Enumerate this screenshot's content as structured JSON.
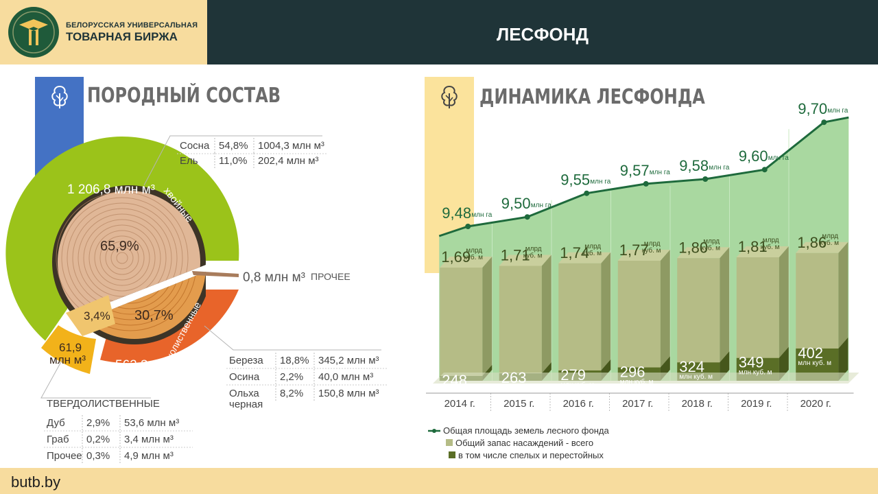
{
  "header": {
    "logo_line1": "БЕЛОРУССКАЯ УНИВЕРСАЛЬНАЯ",
    "logo_line2": "ТОВАРНАЯ БИРЖА",
    "title": "ЛЕСФОНД"
  },
  "footer": {
    "url": "butb.by"
  },
  "species": {
    "title": "ПОРОДНЫЙ СОСТАВ",
    "coniferous": {
      "label": "хвойные",
      "volume": "1 206,8 млн м³",
      "share": "65,9%",
      "rows": [
        {
          "name": "Сосна",
          "pct": "54,8%",
          "vol": "1004,3 млн м³"
        },
        {
          "name": "Ель",
          "pct": "11,0%",
          "vol": "202,4 млн м³"
        }
      ]
    },
    "softwood": {
      "label": "мягколиственные",
      "volume_line1": "562,3",
      "volume_line2": "млн м³",
      "share": "30,7%",
      "rows": [
        {
          "name": "Береза",
          "pct": "18,8%",
          "vol": "345,2 млн м³"
        },
        {
          "name": "Осина",
          "pct": "2,2%",
          "vol": "40,0 млн м³"
        },
        {
          "name": "Ольха черная",
          "pct": "8,2%",
          "vol": "150,8 млн м³"
        }
      ]
    },
    "hardwood": {
      "label": "ТВЕРДОЛИСТВЕННЫЕ",
      "volume_line1": "61,9",
      "volume_line2": "млн м³",
      "share": "3,4%",
      "rows": [
        {
          "name": "Дуб",
          "pct": "2,9%",
          "vol": "53,6 млн м³"
        },
        {
          "name": "Граб",
          "pct": "0,2%",
          "vol": "3,4 млн м³"
        },
        {
          "name": "Прочее",
          "pct": "0,3%",
          "vol": "4,9 млн м³"
        }
      ]
    },
    "other": {
      "value": "0,8 млн м³",
      "label": "ПРОЧЕЕ"
    }
  },
  "dynamics": {
    "title": "ДИНАМИКА ЛЕСФОНДА",
    "legend": {
      "line": "Общая площадь земель лесного фонда",
      "total": "Общий запас насаждений - всего",
      "mature": "в том числе спелых и перестойных"
    },
    "area_unit": "млн га",
    "total_unit_line1": "млрд",
    "total_unit_line2": "куб. м",
    "mature_unit": "млн куб. м",
    "colors": {
      "line": "#1e6a3c",
      "area_fill": "#a9d8a0",
      "bar_front": "#b5bc86",
      "bar_side": "#8e9a63",
      "mature": "#5a6e26"
    }
  },
  "chart_data": {
    "type": "bar",
    "categories": [
      "2014 г.",
      "2015 г.",
      "2016 г.",
      "2017 г.",
      "2018 г.",
      "2019 г.",
      "2020 г."
    ],
    "series": [
      {
        "name": "Общая площадь земель лесного фонда",
        "type": "line",
        "values": [
          9.48,
          9.5,
          9.55,
          9.57,
          9.58,
          9.6,
          9.7
        ],
        "labels": [
          "9,48",
          "9,50",
          "9,55",
          "9,57",
          "9,58",
          "9,60",
          "9,70"
        ]
      },
      {
        "name": "Общий запас насаждений - всего",
        "values": [
          1.69,
          1.71,
          1.74,
          1.77,
          1.8,
          1.81,
          1.86
        ],
        "labels": [
          "1,69",
          "1,71",
          "1,74",
          "1,77",
          "1,80",
          "1,81",
          "1,86"
        ]
      },
      {
        "name": "в том числе спелых и перестойных",
        "values": [
          248,
          263,
          279,
          296,
          324,
          349,
          402
        ],
        "labels": [
          "248",
          "263",
          "279",
          "296",
          "324",
          "349",
          "402"
        ]
      }
    ]
  }
}
